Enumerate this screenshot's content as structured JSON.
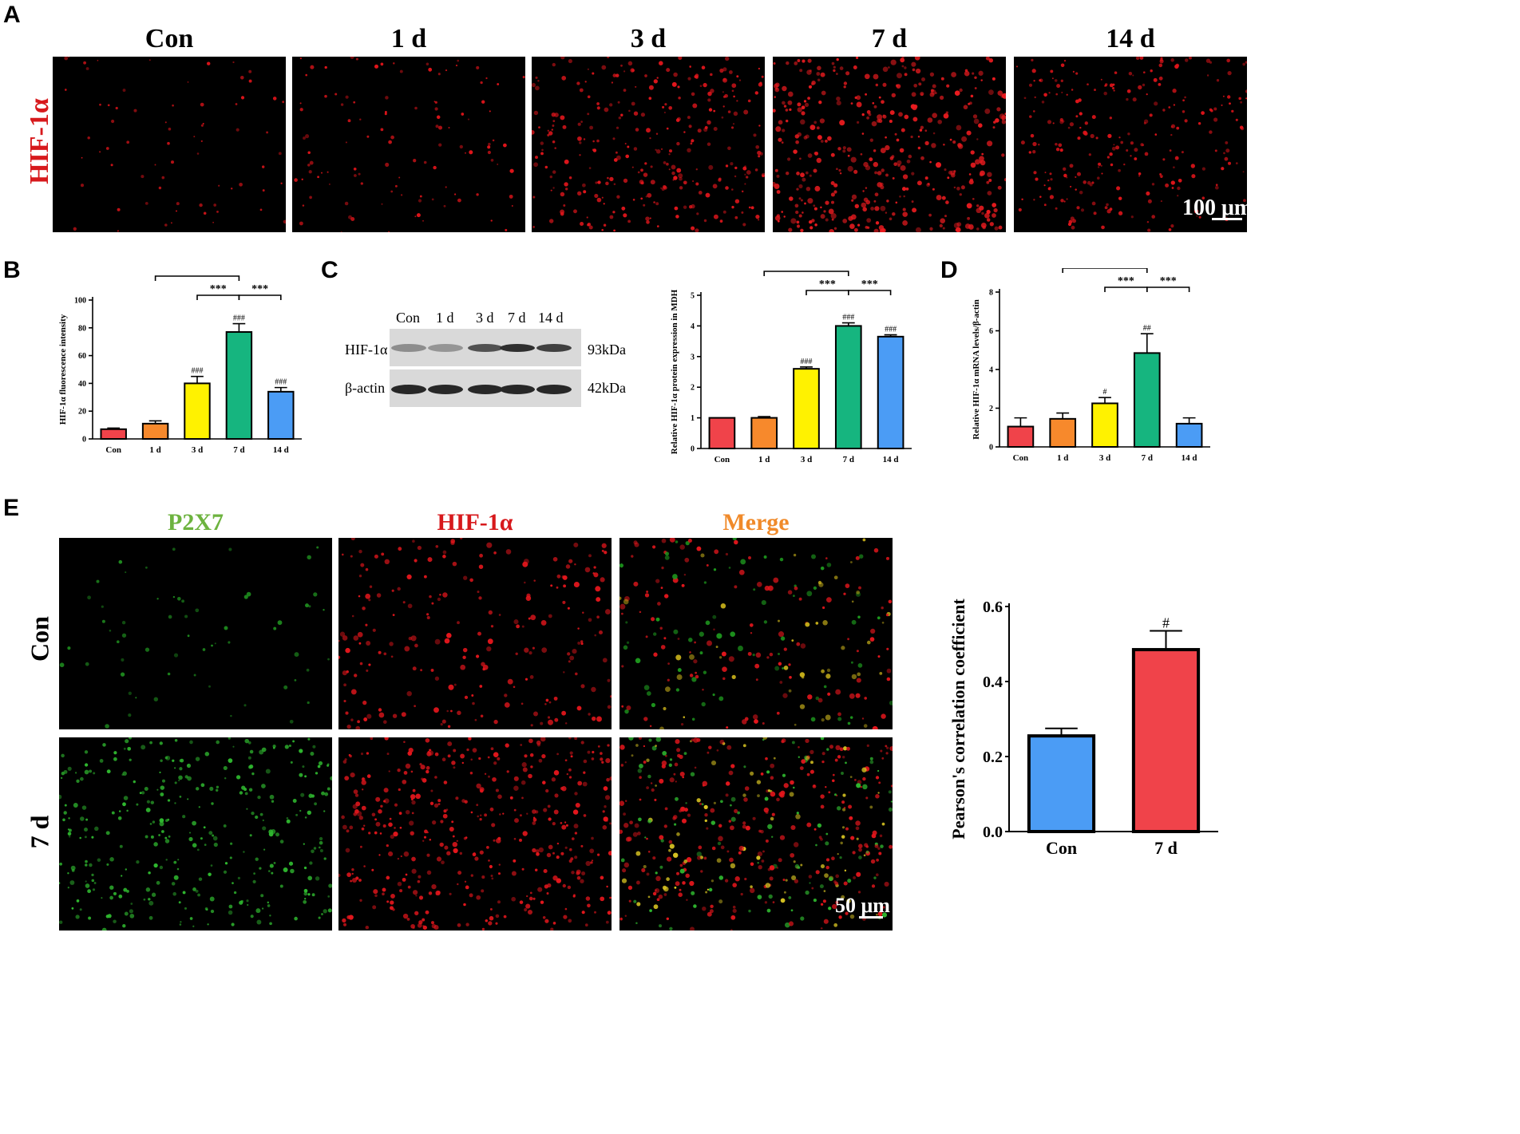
{
  "panels": {
    "A": "A",
    "B": "B",
    "C": "C",
    "D": "D",
    "E": "E"
  },
  "panel_a": {
    "row_label": "HIF-1α",
    "columns": [
      "Con",
      "1 d",
      "3 d",
      "7 d",
      "14 d"
    ],
    "scale_bar": "100 μm",
    "image_descriptions": [
      "HIF-1α immunofluorescence, Con",
      "HIF-1α immunofluorescence, 1 d",
      "HIF-1α immunofluorescence, 3 d",
      "HIF-1α immunofluorescence, 7 d",
      "HIF-1α immunofluorescence, 14 d"
    ]
  },
  "western_blot": {
    "lanes": [
      "Con",
      "1 d",
      "3 d",
      "7 d",
      "14 d"
    ],
    "rows": [
      {
        "label": "HIF-1α",
        "size": "93kDa",
        "intensities": [
          0.35,
          0.3,
          0.7,
          0.9,
          0.8
        ]
      },
      {
        "label": "β-actin",
        "size": "42kDa",
        "intensities": [
          0.95,
          0.95,
          0.95,
          0.95,
          0.95
        ]
      }
    ]
  },
  "panel_e": {
    "columns": [
      "P2X7",
      "HIF-1α",
      "Merge"
    ],
    "column_colors": [
      "#6db33f",
      "#d7191c",
      "#f08a2a"
    ],
    "rows": [
      "Con",
      "7 d"
    ],
    "scale_bar": "50 μm"
  },
  "colors": {
    "Con": "#f0434a",
    "1 d": "#f7892c",
    "3 d": "#fff200",
    "7 d": "#16b57f",
    "14 d": "#4b9cf5",
    "E_Con": "#4b9cf5",
    "E_7d": "#f0434a"
  },
  "chart_data": [
    {
      "id": "B",
      "type": "bar",
      "categories": [
        "Con",
        "1 d",
        "3 d",
        "7 d",
        "14 d"
      ],
      "values": [
        7,
        11,
        40,
        77,
        34
      ],
      "errors": [
        0.8,
        2,
        5,
        6,
        3
      ],
      "ylabel": "HIF-1α fluorescence intensity",
      "ylim": [
        0,
        100
      ],
      "yticks": [
        0,
        20,
        40,
        60,
        80,
        100
      ],
      "marks": [
        "",
        "",
        "###",
        "###",
        "###"
      ],
      "brackets": [
        {
          "from": 1,
          "to": 3,
          "label": "***",
          "level": 2
        },
        {
          "from": 2,
          "to": 3,
          "label": "***",
          "level": 1
        },
        {
          "from": 3,
          "to": 4,
          "label": "***",
          "level": 1
        }
      ]
    },
    {
      "id": "C",
      "type": "bar",
      "categories": [
        "Con",
        "1 d",
        "3 d",
        "7 d",
        "14 d"
      ],
      "values": [
        1.0,
        1.0,
        2.6,
        4.0,
        3.65
      ],
      "errors": [
        0,
        0.04,
        0.06,
        0.1,
        0.06
      ],
      "ylabel": "Relative HIF-1α protein expression in MDH",
      "ylim": [
        0,
        5
      ],
      "yticks": [
        0,
        1,
        2,
        3,
        4,
        5
      ],
      "marks": [
        "",
        "",
        "###",
        "###",
        "###"
      ],
      "brackets": [
        {
          "from": 1,
          "to": 3,
          "label": "***",
          "level": 2
        },
        {
          "from": 2,
          "to": 3,
          "label": "***",
          "level": 1
        },
        {
          "from": 3,
          "to": 4,
          "label": "***",
          "level": 1
        }
      ]
    },
    {
      "id": "D",
      "type": "bar",
      "categories": [
        "Con",
        "1 d",
        "3 d",
        "7 d",
        "14 d"
      ],
      "values": [
        1.05,
        1.45,
        2.25,
        4.85,
        1.2
      ],
      "errors": [
        0.45,
        0.3,
        0.3,
        1.0,
        0.3
      ],
      "ylabel": "Relative HIF-1α mRNA levels/β-actin",
      "ylim": [
        0,
        8
      ],
      "yticks": [
        0,
        2,
        4,
        6,
        8
      ],
      "marks": [
        "",
        "",
        "#",
        "##",
        ""
      ],
      "brackets": [
        {
          "from": 1,
          "to": 3,
          "label": "***",
          "level": 2
        },
        {
          "from": 2,
          "to": 3,
          "label": "***",
          "level": 1
        },
        {
          "from": 3,
          "to": 4,
          "label": "***",
          "level": 1
        }
      ]
    },
    {
      "id": "E",
      "type": "bar",
      "categories": [
        "Con",
        "7 d"
      ],
      "values": [
        0.255,
        0.485
      ],
      "errors": [
        0.02,
        0.05
      ],
      "ylabel": "Pearson's correlation coefficient",
      "ylim": [
        0,
        0.6
      ],
      "yticks": [
        "0.0",
        "0.2",
        "0.4",
        "0.6"
      ],
      "marks": [
        "",
        "#"
      ],
      "brackets": []
    }
  ]
}
